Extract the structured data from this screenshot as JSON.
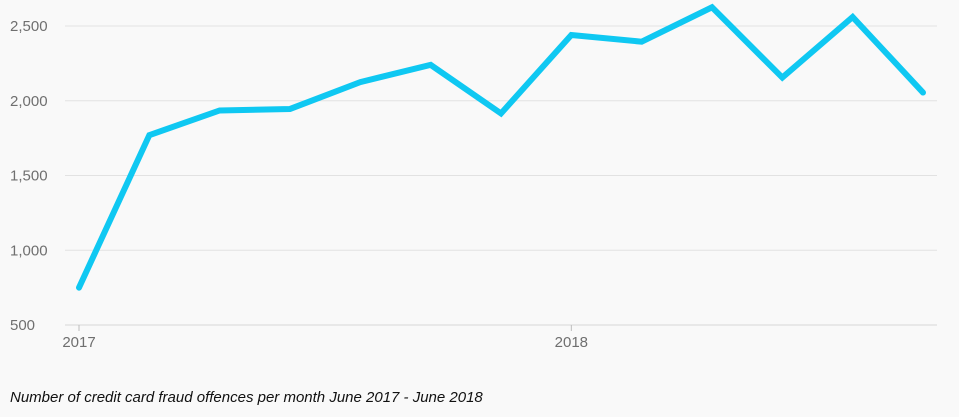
{
  "chart_data": {
    "type": "line",
    "x": [
      "2017-06",
      "2017-07",
      "2017-08",
      "2017-09",
      "2017-10",
      "2017-11",
      "2017-12",
      "2018-01",
      "2018-02",
      "2018-03",
      "2018-04",
      "2018-05",
      "2018-06"
    ],
    "series": [
      {
        "values": [
          750,
          1770,
          1935,
          1945,
          2125,
          2240,
          1915,
          2440,
          2395,
          2625,
          2155,
          2560,
          2055
        ]
      }
    ],
    "ylim": [
      500,
      2600
    ],
    "yticks": [
      500,
      1000,
      1500,
      2000,
      2500
    ],
    "ytick_labels": [
      "500",
      "1,000",
      "1,500",
      "2,000",
      "2,500"
    ],
    "xticks": [
      {
        "at": "2017-06",
        "label": "2017"
      },
      {
        "at": "2018-01",
        "label": "2018"
      }
    ],
    "grid": true,
    "line_color": "#0fc8f2"
  },
  "caption": "Number of credit card fraud offences per month June 2017 - June 2018"
}
